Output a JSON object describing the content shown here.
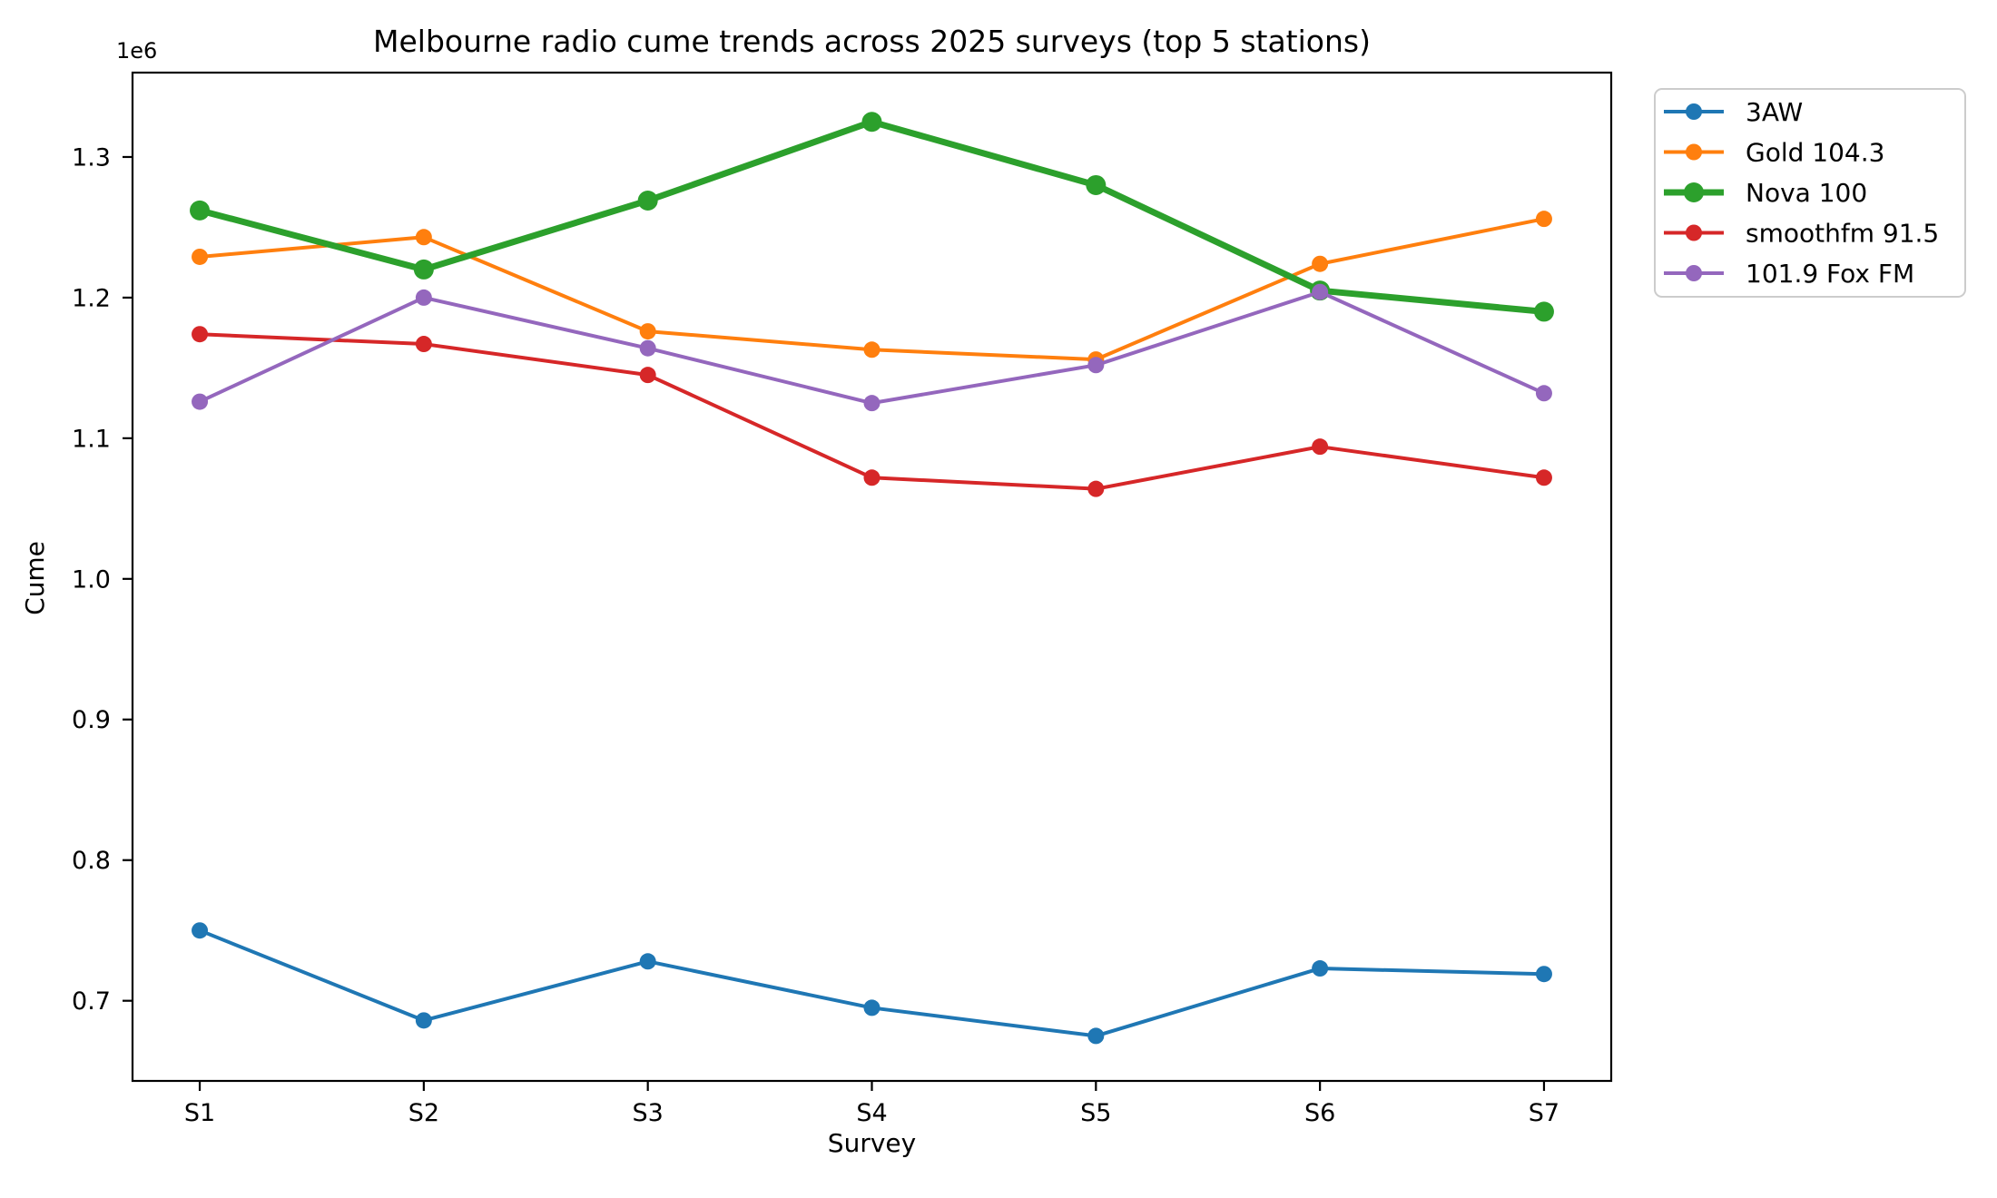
{
  "figure": {
    "title": "Melbourne radio cume trends across 2025 surveys (top 5 stations)",
    "xlabel": "Survey",
    "ylabel": "Cume",
    "y_offset_label": "1e6"
  },
  "chart_data": {
    "type": "line",
    "title": "Melbourne radio cume trends across 2025 surveys (top 5 stations)",
    "xlabel": "Survey",
    "ylabel": "Cume",
    "y_offset_label": "1e6",
    "grid": false,
    "legend_position": "upper right, outside plot",
    "categories": [
      "S1",
      "S2",
      "S3",
      "S4",
      "S5",
      "S6",
      "S7"
    ],
    "ylim": [
      643000,
      1360000
    ],
    "y_ticks": [
      {
        "value": 700000,
        "label": "0.7"
      },
      {
        "value": 800000,
        "label": "0.8"
      },
      {
        "value": 900000,
        "label": "0.9"
      },
      {
        "value": 1000000,
        "label": "1.0"
      },
      {
        "value": 1100000,
        "label": "1.1"
      },
      {
        "value": 1200000,
        "label": "1.2"
      },
      {
        "value": 1300000,
        "label": "1.3"
      }
    ],
    "series": [
      {
        "name": "3AW",
        "color": "#1f77b4",
        "line_width": 4,
        "marker_radius": 9,
        "values": [
          750000,
          686000,
          728000,
          695000,
          675000,
          723000,
          719000
        ]
      },
      {
        "name": "Gold 104.3",
        "color": "#ff7f0e",
        "line_width": 4,
        "marker_radius": 9,
        "values": [
          1229000,
          1243000,
          1176000,
          1163000,
          1156000,
          1224000,
          1256000
        ]
      },
      {
        "name": "Nova 100",
        "color": "#2ca02c",
        "line_width": 7,
        "marker_radius": 11,
        "values": [
          1262000,
          1220000,
          1269000,
          1325000,
          1280000,
          1205000,
          1190000
        ]
      },
      {
        "name": "smoothfm 91.5",
        "color": "#d62728",
        "line_width": 4,
        "marker_radius": 9,
        "values": [
          1174000,
          1167000,
          1145000,
          1072000,
          1064000,
          1094000,
          1072000
        ]
      },
      {
        "name": "101.9 Fox FM",
        "color": "#9467bd",
        "line_width": 4,
        "marker_radius": 9,
        "values": [
          1126000,
          1200000,
          1164000,
          1125000,
          1152000,
          1204000,
          1132000
        ]
      }
    ],
    "legend": {
      "border_color": "#cccccc",
      "background_color": "#ffffff"
    },
    "axis_color": "#000000"
  }
}
